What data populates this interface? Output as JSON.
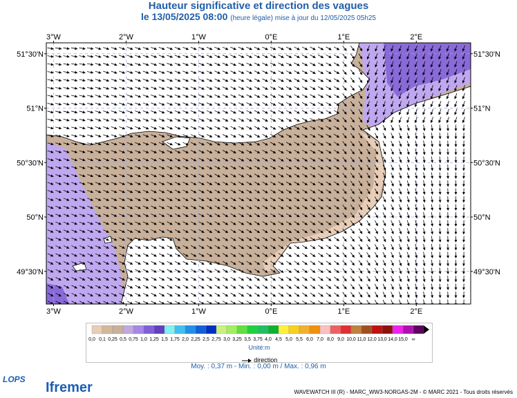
{
  "header": {
    "title": "Hauteur significative et direction des vagues",
    "subtitle_date": "le 13/05/2025 08:00",
    "subtitle_note": "(heure légale) mise à jour du 12/05/2025 05h25"
  },
  "map": {
    "lon_min": -3.1,
    "lon_max": 2.75,
    "lat_min": 49.2,
    "lat_max": 51.6,
    "top_lon_labels": [
      "3°W",
      "2°W",
      "1°W",
      "0°E",
      "1°E",
      "2°E"
    ],
    "bottom_lon_labels": [
      "3°W",
      "2°W",
      "1°W",
      "0°E",
      "1°E",
      "2°E"
    ],
    "lon_values": [
      -3,
      -2,
      -1,
      0,
      1,
      2
    ],
    "left_lat_labels": [
      "51°30'N",
      "51°N",
      "50°30'N",
      "50°N",
      "49°30'N"
    ],
    "right_lat_labels": [
      "51°30'N",
      "51°N",
      "50°30'N",
      "50°N",
      "49°30'N"
    ],
    "lat_values": [
      51.5,
      51.0,
      50.5,
      50.0,
      49.5
    ],
    "land_color": "#ffffff",
    "grid": true
  },
  "legend": {
    "labels": [
      "0,0",
      "0,1",
      "0,25",
      "0,5",
      "0,75",
      "1,0",
      "1,25",
      "1,5",
      "1,75",
      "2,0",
      "2,25",
      "2,5",
      "2,75",
      "3,0",
      "3,25",
      "3,5",
      "3,75",
      "4,0",
      "4,5",
      "5,0",
      "5,5",
      "6,0",
      "7,0",
      "8,0",
      "9,0",
      "10,0",
      "11,0",
      "12,0",
      "13,0",
      "14,0",
      "15,0",
      "∞"
    ],
    "colors": [
      "#e8cdb8",
      "#d4b89c",
      "#c8b09a",
      "#c0a8e0",
      "#a488e8",
      "#8060d8",
      "#6040c0",
      "#80f0f0",
      "#40c0f0",
      "#2090e8",
      "#1060d8",
      "#0030c0",
      "#ccf080",
      "#a0f060",
      "#60e040",
      "#20d040",
      "#20c060",
      "#10b030",
      "#fff040",
      "#f8d020",
      "#f0b030",
      "#f09010",
      "#f8c0c0",
      "#f06060",
      "#e03030",
      "#c08040",
      "#a05020",
      "#c01010",
      "#901010",
      "#f020f0",
      "#b010b0",
      "#600060"
    ],
    "unit_label": "Unité:m",
    "direction_label": "direction"
  },
  "stats": {
    "text": "Moy. : 0,37 m   -   Min. : 0,00 m / Max. : 0,96 m"
  },
  "footer": {
    "credit": "WAVEWATCH III (R) - MARC_WW3-NORGAS-2M - © MARC 2021 - Tous droits réservés",
    "logo_lops": "LOPS",
    "logo_ifremer": "Ifremer"
  }
}
